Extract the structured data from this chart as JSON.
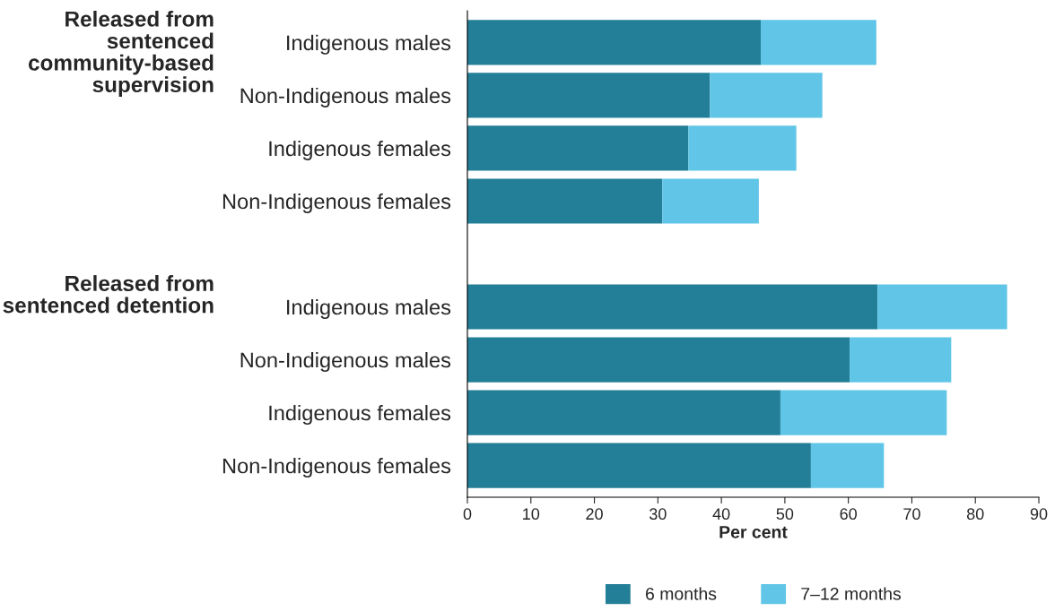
{
  "chart_data": {
    "type": "bar",
    "orientation": "horizontal",
    "stacked": true,
    "xlabel": "Per cent",
    "categories": [
      "Indigenous males",
      "Non-Indigenous males",
      "Indigenous females",
      "Non-Indigenous females",
      null,
      "Indigenous males",
      "Non-Indigenous males",
      "Indigenous females",
      "Non-Indigenous females"
    ],
    "series": [
      {
        "name": "6 months",
        "color": "#237f97",
        "values": [
          46.2,
          38.2,
          34.8,
          30.7,
          null,
          64.6,
          60.2,
          49.3,
          54.1
        ]
      },
      {
        "name": "7–12 months",
        "color": "#60c5e7",
        "values": [
          18.2,
          17.7,
          17.0,
          15.2,
          null,
          20.4,
          16.0,
          26.2,
          11.5
        ]
      }
    ],
    "xlim": [
      0,
      90
    ],
    "xticks": [
      0,
      10,
      20,
      30,
      40,
      50,
      60,
      70,
      80,
      90
    ],
    "annotations": [
      "Released from\nsentenced\ncommunity-based\nsupervision",
      "Released from\nsentenced detention"
    ],
    "grid": false,
    "legend": "bottom"
  }
}
